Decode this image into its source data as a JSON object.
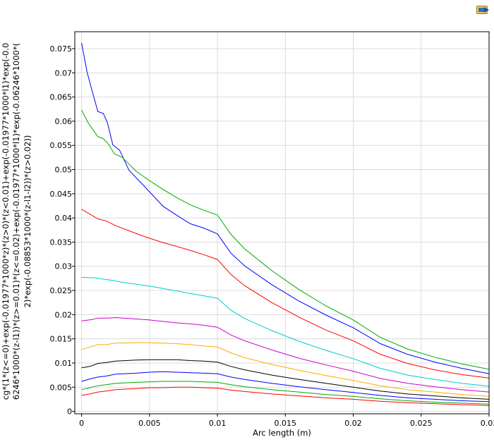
{
  "toolbar": {
    "export_icon": "image-export-icon"
  },
  "chart_data": {
    "type": "line",
    "xlabel": "Arc length (m)",
    "ylabel_lines": [
      "cg*(1*(z<=0)+exp(-0.01977*1000*z)*(z>0)*(z<0.01)+exp(-0.01977*1000*l1)*exp(-0.0",
      "6246*1000*(z-l1))*(z>=0.01)*(z<=0.02)+exp(-0.01977*1000*l1)*exp(-0.06246*1000*(",
      "2)*exp(-0.08853*1000*(z-l1-l2))*(z>0.02))"
    ],
    "xlim": [
      -0.0005,
      0.03
    ],
    "ylim": [
      -0.0005,
      0.0785
    ],
    "xticks": [
      0,
      0.005,
      0.01,
      0.015,
      0.02,
      0.025,
      0.03
    ],
    "xtick_labels": [
      "0",
      "0.005",
      "0.01",
      "0.015",
      "0.02",
      "0.025",
      "0.03"
    ],
    "yticks": [
      0,
      0.005,
      0.01,
      0.015,
      0.02,
      0.025,
      0.03,
      0.035,
      0.04,
      0.045,
      0.05,
      0.055,
      0.06,
      0.065,
      0.07,
      0.075
    ],
    "ytick_labels": [
      "0",
      "0.005",
      "0.01",
      "0.015",
      "0.02",
      "0.025",
      "0.03",
      "0.035",
      "0.04",
      "0.045",
      "0.05",
      "0.055",
      "0.06",
      "0.065",
      "0.07",
      "0.075"
    ],
    "grid": true,
    "series": [
      {
        "color": "#0000ff",
        "points": [
          [
            0,
            0.0762
          ],
          [
            0.0004,
            0.0702
          ],
          [
            0.0008,
            0.066
          ],
          [
            0.0012,
            0.062
          ],
          [
            0.0016,
            0.0616
          ],
          [
            0.0019,
            0.0597
          ],
          [
            0.0023,
            0.0551
          ],
          [
            0.0028,
            0.054
          ],
          [
            0.0035,
            0.0498
          ],
          [
            0.0046,
            0.0466
          ],
          [
            0.006,
            0.0424
          ],
          [
            0.0072,
            0.0402
          ],
          [
            0.008,
            0.0388
          ],
          [
            0.009,
            0.0379
          ],
          [
            0.01,
            0.0367
          ],
          [
            0.011,
            0.0327
          ],
          [
            0.012,
            0.0301
          ],
          [
            0.014,
            0.0262
          ],
          [
            0.016,
            0.0228
          ],
          [
            0.018,
            0.0199
          ],
          [
            0.02,
            0.0173
          ],
          [
            0.022,
            0.014
          ],
          [
            0.024,
            0.0118
          ],
          [
            0.026,
            0.0102
          ],
          [
            0.028,
            0.0089
          ],
          [
            0.03,
            0.0078
          ]
        ]
      },
      {
        "color": "#00aa00",
        "points": [
          [
            0,
            0.0623
          ],
          [
            0.0005,
            0.0596
          ],
          [
            0.0012,
            0.0568
          ],
          [
            0.0016,
            0.0564
          ],
          [
            0.002,
            0.0552
          ],
          [
            0.0024,
            0.0533
          ],
          [
            0.003,
            0.0525
          ],
          [
            0.004,
            0.0497
          ],
          [
            0.005,
            0.0477
          ],
          [
            0.006,
            0.0459
          ],
          [
            0.007,
            0.0442
          ],
          [
            0.008,
            0.0427
          ],
          [
            0.009,
            0.0416
          ],
          [
            0.01,
            0.0406
          ],
          [
            0.011,
            0.0366
          ],
          [
            0.012,
            0.0336
          ],
          [
            0.014,
            0.0291
          ],
          [
            0.016,
            0.0252
          ],
          [
            0.018,
            0.0218
          ],
          [
            0.02,
            0.0189
          ],
          [
            0.022,
            0.0153
          ],
          [
            0.024,
            0.0129
          ],
          [
            0.026,
            0.0112
          ],
          [
            0.028,
            0.0098
          ],
          [
            0.03,
            0.0087
          ]
        ]
      },
      {
        "color": "#ff0000",
        "points": [
          [
            0,
            0.0418
          ],
          [
            0.0006,
            0.0408
          ],
          [
            0.0012,
            0.0398
          ],
          [
            0.0018,
            0.0394
          ],
          [
            0.0025,
            0.0384
          ],
          [
            0.004,
            0.0368
          ],
          [
            0.005,
            0.0358
          ],
          [
            0.006,
            0.0349
          ],
          [
            0.007,
            0.0341
          ],
          [
            0.008,
            0.0333
          ],
          [
            0.009,
            0.0324
          ],
          [
            0.01,
            0.0314
          ],
          [
            0.011,
            0.0283
          ],
          [
            0.012,
            0.026
          ],
          [
            0.014,
            0.0225
          ],
          [
            0.016,
            0.0195
          ],
          [
            0.018,
            0.0168
          ],
          [
            0.02,
            0.0146
          ],
          [
            0.022,
            0.0118
          ],
          [
            0.024,
            0.0099
          ],
          [
            0.026,
            0.0086
          ],
          [
            0.028,
            0.0076
          ],
          [
            0.03,
            0.0069
          ]
        ]
      },
      {
        "color": "#00cccc",
        "points": [
          [
            0,
            0.0277
          ],
          [
            0.001,
            0.0276
          ],
          [
            0.002,
            0.0272
          ],
          [
            0.003,
            0.0267
          ],
          [
            0.004,
            0.0263
          ],
          [
            0.005,
            0.0259
          ],
          [
            0.006,
            0.0254
          ],
          [
            0.007,
            0.0249
          ],
          [
            0.008,
            0.0244
          ],
          [
            0.009,
            0.0239
          ],
          [
            0.01,
            0.0234
          ],
          [
            0.011,
            0.0209
          ],
          [
            0.012,
            0.0192
          ],
          [
            0.014,
            0.0167
          ],
          [
            0.016,
            0.0145
          ],
          [
            0.018,
            0.0126
          ],
          [
            0.02,
            0.0109
          ],
          [
            0.022,
            0.0089
          ],
          [
            0.024,
            0.0075
          ],
          [
            0.026,
            0.0066
          ],
          [
            0.028,
            0.0058
          ],
          [
            0.03,
            0.0052
          ]
        ]
      },
      {
        "color": "#cc00cc",
        "points": [
          [
            0,
            0.0187
          ],
          [
            0.0008,
            0.019
          ],
          [
            0.0012,
            0.0193
          ],
          [
            0.002,
            0.0193
          ],
          [
            0.0025,
            0.0194
          ],
          [
            0.004,
            0.0191
          ],
          [
            0.005,
            0.0189
          ],
          [
            0.006,
            0.0186
          ],
          [
            0.007,
            0.0183
          ],
          [
            0.008,
            0.0181
          ],
          [
            0.009,
            0.0178
          ],
          [
            0.01,
            0.0174
          ],
          [
            0.011,
            0.0158
          ],
          [
            0.012,
            0.0146
          ],
          [
            0.014,
            0.0127
          ],
          [
            0.016,
            0.011
          ],
          [
            0.018,
            0.0096
          ],
          [
            0.02,
            0.0083
          ],
          [
            0.022,
            0.0068
          ],
          [
            0.024,
            0.0058
          ],
          [
            0.026,
            0.0051
          ],
          [
            0.028,
            0.0045
          ],
          [
            0.03,
            0.004
          ]
        ]
      },
      {
        "color": "#ffaa00",
        "points": [
          [
            0,
            0.0128
          ],
          [
            0.0006,
            0.0133
          ],
          [
            0.0012,
            0.0138
          ],
          [
            0.0018,
            0.0138
          ],
          [
            0.0025,
            0.0141
          ],
          [
            0.004,
            0.0142
          ],
          [
            0.005,
            0.0142
          ],
          [
            0.006,
            0.0141
          ],
          [
            0.007,
            0.014
          ],
          [
            0.008,
            0.0138
          ],
          [
            0.009,
            0.0135
          ],
          [
            0.01,
            0.0133
          ],
          [
            0.011,
            0.0121
          ],
          [
            0.012,
            0.0111
          ],
          [
            0.014,
            0.0097
          ],
          [
            0.016,
            0.0085
          ],
          [
            0.018,
            0.0074
          ],
          [
            0.02,
            0.0064
          ],
          [
            0.022,
            0.0053
          ],
          [
            0.024,
            0.0045
          ],
          [
            0.026,
            0.004
          ],
          [
            0.028,
            0.0035
          ],
          [
            0.03,
            0.0031
          ]
        ]
      },
      {
        "color": "#000000",
        "points": [
          [
            0,
            0.009
          ],
          [
            0.0006,
            0.0093
          ],
          [
            0.0012,
            0.0099
          ],
          [
            0.0018,
            0.0101
          ],
          [
            0.0025,
            0.0104
          ],
          [
            0.004,
            0.0106
          ],
          [
            0.005,
            0.0107
          ],
          [
            0.006,
            0.0107
          ],
          [
            0.007,
            0.0107
          ],
          [
            0.008,
            0.0105
          ],
          [
            0.009,
            0.0104
          ],
          [
            0.01,
            0.0102
          ],
          [
            0.011,
            0.0093
          ],
          [
            0.012,
            0.0086
          ],
          [
            0.014,
            0.0075
          ],
          [
            0.016,
            0.0066
          ],
          [
            0.018,
            0.0058
          ],
          [
            0.02,
            0.005
          ],
          [
            0.022,
            0.0042
          ],
          [
            0.024,
            0.0036
          ],
          [
            0.026,
            0.0032
          ],
          [
            0.028,
            0.0028
          ],
          [
            0.03,
            0.0025
          ]
        ]
      },
      {
        "color": "#0000ff",
        "points": [
          [
            0,
            0.0062
          ],
          [
            0.0006,
            0.0067
          ],
          [
            0.0012,
            0.0071
          ],
          [
            0.0018,
            0.0073
          ],
          [
            0.0025,
            0.0077
          ],
          [
            0.004,
            0.0079
          ],
          [
            0.005,
            0.0081
          ],
          [
            0.006,
            0.0082
          ],
          [
            0.007,
            0.0081
          ],
          [
            0.008,
            0.008
          ],
          [
            0.009,
            0.0079
          ],
          [
            0.01,
            0.0078
          ],
          [
            0.011,
            0.0071
          ],
          [
            0.012,
            0.0066
          ],
          [
            0.014,
            0.0058
          ],
          [
            0.016,
            0.0051
          ],
          [
            0.018,
            0.0045
          ],
          [
            0.02,
            0.0039
          ],
          [
            0.022,
            0.0033
          ],
          [
            0.024,
            0.0028
          ],
          [
            0.026,
            0.0025
          ],
          [
            0.028,
            0.0022
          ],
          [
            0.03,
            0.002
          ]
        ]
      },
      {
        "color": "#00aa00",
        "points": [
          [
            0,
            0.0045
          ],
          [
            0.0006,
            0.0049
          ],
          [
            0.0012,
            0.0053
          ],
          [
            0.0018,
            0.0055
          ],
          [
            0.0025,
            0.0058
          ],
          [
            0.004,
            0.006
          ],
          [
            0.005,
            0.0061
          ],
          [
            0.006,
            0.0062
          ],
          [
            0.007,
            0.0062
          ],
          [
            0.008,
            0.0062
          ],
          [
            0.009,
            0.0061
          ],
          [
            0.01,
            0.006
          ],
          [
            0.011,
            0.0055
          ],
          [
            0.012,
            0.0051
          ],
          [
            0.014,
            0.0045
          ],
          [
            0.016,
            0.004
          ],
          [
            0.018,
            0.0035
          ],
          [
            0.02,
            0.0031
          ],
          [
            0.022,
            0.0026
          ],
          [
            0.024,
            0.0022
          ],
          [
            0.026,
            0.0019
          ],
          [
            0.028,
            0.0017
          ],
          [
            0.03,
            0.0015
          ]
        ]
      },
      {
        "color": "#ff0000",
        "points": [
          [
            0,
            0.0033
          ],
          [
            0.0006,
            0.0036
          ],
          [
            0.0012,
            0.004
          ],
          [
            0.0018,
            0.0042
          ],
          [
            0.0025,
            0.0045
          ],
          [
            0.004,
            0.0047
          ],
          [
            0.005,
            0.0049
          ],
          [
            0.006,
            0.0049
          ],
          [
            0.007,
            0.005
          ],
          [
            0.008,
            0.005
          ],
          [
            0.009,
            0.0049
          ],
          [
            0.01,
            0.0048
          ],
          [
            0.011,
            0.0044
          ],
          [
            0.012,
            0.0041
          ],
          [
            0.014,
            0.0036
          ],
          [
            0.016,
            0.0032
          ],
          [
            0.018,
            0.0028
          ],
          [
            0.02,
            0.0025
          ],
          [
            0.022,
            0.0021
          ],
          [
            0.024,
            0.0018
          ],
          [
            0.026,
            0.0016
          ],
          [
            0.028,
            0.0014
          ],
          [
            0.03,
            0.0012
          ]
        ]
      }
    ]
  }
}
